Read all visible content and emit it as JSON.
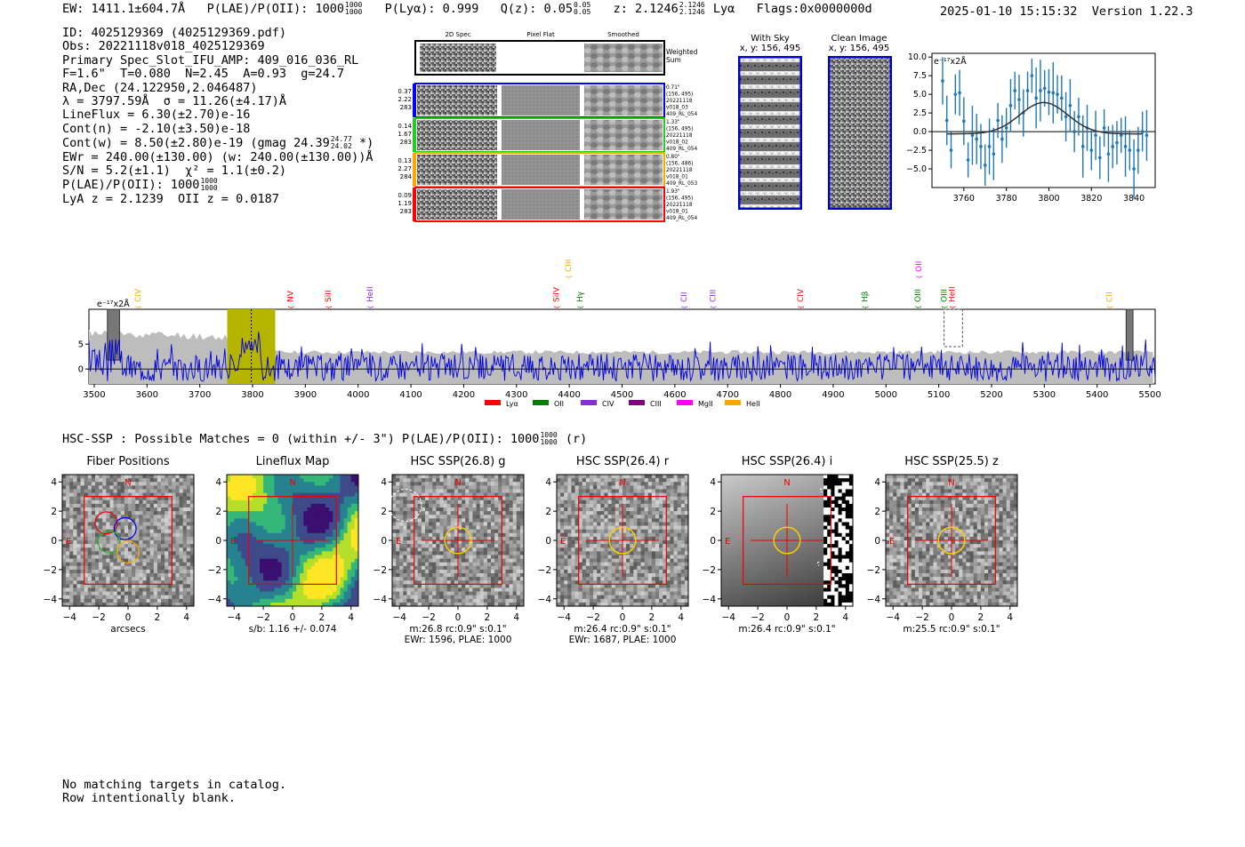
{
  "header": {
    "ew": "EW: 1411.1±604.7Å",
    "plae_label": "P(LAE)/P(OII): 1000",
    "plae_hi": "1000",
    "plae_lo": "1000",
    "plya": "P(Lyα): 0.999",
    "qz_label": "Q(z): 0.05",
    "qz_hi": "0.05",
    "qz_lo": "0.05",
    "z_label": "z: 2.1246",
    "z_hi": "2.1246",
    "z_lo": "2.1246",
    "line": "Lyα",
    "flags": "Flags:0x0000000d",
    "datetime": "2025-01-10 15:15:32",
    "version": "Version 1.22.3"
  },
  "info": {
    "id": "ID: 4025129369 (4025129369.pdf)",
    "obs": "Obs: 20221118v018_4025129369",
    "primary": "Primary Spec_Slot_IFU_AMP: 409_016_036_RL",
    "params": "F=1.6\"  T=0.080  N=2.45  A=0.93  g=24.7",
    "radec": "RA,Dec (24.122950,2.046487)",
    "lambda": "λ = 3797.59Å  σ = 11.26(±4.17)Å",
    "lineflux": "LineFlux = 6.30(±2.70)e-16",
    "contn": "Cont(n) = -2.10(±3.50)e-18",
    "contw": "Cont(w) = 8.50(±2.80)e-19 (gmag 24.39",
    "gmag_hi": "24.77",
    "gmag_lo": "24.02",
    "contw_end": " *)",
    "ewr": "EWr = 240.00(±130.00) (w: 240.00(±130.00))Å",
    "sn": "S/N = 5.2(±1.1)  χ² = 1.1(±0.2)",
    "plae": "P(LAE)/P(OII): 1000",
    "plae_hi": "1000",
    "plae_lo": "1000",
    "lya_z": "LyA z = 2.1239  OII z = 0.0187"
  },
  "cutouts": {
    "col_labels": [
      "2D Spec",
      "Pixel Flat",
      "Smoothed"
    ],
    "weighted_sum": [
      "Weighted",
      "Sum"
    ],
    "rows": [
      {
        "color": "#0000ff",
        "left": [
          "0.37",
          "2.22",
          "283"
        ],
        "right": [
          "0.71\"",
          "(156, 495)",
          "20221118",
          "v018_03",
          "409_RL_054"
        ]
      },
      {
        "color": "#22cc22",
        "left": [
          "0.14",
          "1.67",
          "283"
        ],
        "right": [
          "1.33\"",
          "(156, 495)",
          "20221118",
          "v018_02",
          "409_RL_054"
        ]
      },
      {
        "color": "#ffa500",
        "left": [
          "0.13",
          "2.27",
          "284"
        ],
        "right": [
          "0.80\"",
          "(156, 486)",
          "20221118",
          "v018_01",
          "409_RL_053"
        ]
      },
      {
        "color": "#ff0000",
        "left": [
          "0.09",
          "1.19",
          "283"
        ],
        "right": [
          "1.93\"",
          "(156, 495)",
          "20221118",
          "v018_01",
          "409_RL_054"
        ]
      }
    ]
  },
  "sky_panels": {
    "with_sky": {
      "title": "With Sky",
      "sub": "x, y: 156, 495"
    },
    "clean": {
      "title": "Clean Image",
      "sub": "x, y: 156, 495"
    }
  },
  "zoom_chart": {
    "ylabel_tag": "e⁻¹⁷x2Å",
    "x_ticks": [
      "3760",
      "3780",
      "3800",
      "3820",
      "3840"
    ],
    "y_ticks": [
      "10.0",
      "7.5",
      "5.0",
      "2.5",
      "0.0",
      "−2.5",
      "−5.0"
    ]
  },
  "chart_data": [
    {
      "type": "scatter",
      "title": "",
      "xlabel": "",
      "ylabel": "e-17 x2Å",
      "xlim": [
        3745,
        3850
      ],
      "ylim": [
        -7.5,
        10.5
      ],
      "x": [
        3750,
        3752,
        3754,
        3756,
        3758,
        3760,
        3762,
        3764,
        3766,
        3768,
        3770,
        3772,
        3774,
        3776,
        3778,
        3780,
        3782,
        3784,
        3786,
        3788,
        3790,
        3792,
        3794,
        3796,
        3798,
        3800,
        3802,
        3804,
        3806,
        3808,
        3810,
        3812,
        3814,
        3816,
        3818,
        3820,
        3822,
        3824,
        3826,
        3828,
        3830,
        3832,
        3834,
        3836,
        3838,
        3840,
        3842,
        3844,
        3846
      ],
      "y": [
        6.8,
        1.5,
        -2.5,
        5.0,
        5.2,
        1.4,
        -3.8,
        -0.5,
        -1.0,
        -2.0,
        -4.5,
        -2.0,
        -3.0,
        1.5,
        -1.0,
        0.5,
        3.5,
        5.5,
        4.3,
        2.5,
        5.5,
        7.5,
        4.5,
        5.5,
        5.8,
        5.3,
        5.2,
        5.0,
        4.5,
        2.0,
        3.5,
        0.0,
        2.0,
        -2.0,
        0.5,
        -2.5,
        -0.5,
        -3.5,
        0.5,
        -3.0,
        -2.0,
        -1.5,
        -0.5,
        -2.0,
        -2.5,
        -5.0,
        -2.5,
        0.0,
        -0.5
      ],
      "fit": {
        "amp": 4.2,
        "center": 3797.6,
        "sigma": 11.26,
        "offset": -0.3
      }
    },
    {
      "type": "line",
      "title": "",
      "xlabel": "",
      "ylabel": "e-17 x2Å",
      "xlim": [
        3490,
        5510
      ],
      "ylim": [
        -3,
        12
      ],
      "x_ticks": [
        "3500",
        "3600",
        "3700",
        "3800",
        "3900",
        "4000",
        "4100",
        "4200",
        "4300",
        "4400",
        "4500",
        "4600",
        "4700",
        "4800",
        "4900",
        "5000",
        "5100",
        "5200",
        "5300",
        "5400",
        "5500"
      ],
      "y_ticks": [
        "5",
        "0"
      ],
      "ylabel_tag": "e⁻¹⁷x2Å",
      "highlight_band": [
        3752,
        3843
      ],
      "emission_marker": 3797.6,
      "lines": [
        {
          "name": "CIV",
          "wave": 3583,
          "color": "#ffa500"
        },
        {
          "name": "NV",
          "wave": 3872,
          "color": "#ff0000"
        },
        {
          "name": "SiII",
          "wave": 3943,
          "color": "#ff0000"
        },
        {
          "name": "HeII",
          "wave": 4022,
          "color": "#8a2be2"
        },
        {
          "name": "SiIV",
          "wave": 4375,
          "color": "#ff0000"
        },
        {
          "name": "CIII",
          "wave": 4398,
          "color": "#ffa500"
        },
        {
          "name": "Hγ",
          "wave": 4420,
          "color": "#008000"
        },
        {
          "name": "CII",
          "wave": 4617,
          "color": "#8a2be2"
        },
        {
          "name": "CIII",
          "wave": 4672,
          "color": "#8a2be2"
        },
        {
          "name": "CIV",
          "wave": 4838,
          "color": "#ff0000"
        },
        {
          "name": "Hβ",
          "wave": 4960,
          "color": "#008000"
        },
        {
          "name": "OIII",
          "wave": 5060,
          "color": "#008000"
        },
        {
          "name": "OII",
          "wave": 5062,
          "color": "#ff00ff"
        },
        {
          "name": "OIII",
          "wave": 5110,
          "color": "#008000"
        },
        {
          "name": "HeII",
          "wave": 5125,
          "color": "#ff0000"
        },
        {
          "name": "CII",
          "wave": 5423,
          "color": "#ffa500"
        }
      ],
      "legend": [
        {
          "name": "Lyα",
          "color": "#ff0000"
        },
        {
          "name": "OII",
          "color": "#008000"
        },
        {
          "name": "CIV",
          "color": "#8a2be2"
        },
        {
          "name": "CIII",
          "color": "#800080"
        },
        {
          "name": "MgII",
          "color": "#ff00ff"
        },
        {
          "name": "HeII",
          "color": "#ffa500"
        }
      ]
    }
  ],
  "hsc_line": {
    "text": "HSC-SSP : Possible Matches = 0 (within +/- 3\")  P(LAE)/P(OII): 1000",
    "hi": "1000",
    "lo": "1000",
    "end": " (r)"
  },
  "panels": [
    {
      "title": "Fiber Positions",
      "caption1": "arcsecs",
      "caption2": ""
    },
    {
      "title": "Lineflux Map",
      "caption1": "s/b: 1.16 +/- 0.074",
      "caption2": ""
    },
    {
      "title": "HSC SSP(26.8) g",
      "caption1": "m:26.8 rc:0.9\"  s:0.1\"",
      "caption2": "EWr: 1596, PLAE: 1000"
    },
    {
      "title": "HSC SSP(26.4) r",
      "caption1": "m:26.4 rc:0.9\"  s:0.1\"",
      "caption2": "EWr: 1687, PLAE: 1000"
    },
    {
      "title": "HSC SSP(26.4) i",
      "caption1": "m:26.4 rc:0.9\"  s:0.1\"",
      "caption2": ""
    },
    {
      "title": "HSC SSP(25.5) z",
      "caption1": "m:25.5 rc:0.9\"  s:0.1\"",
      "caption2": ""
    }
  ],
  "panel_axes": {
    "ticks": [
      "4",
      "2",
      "0",
      "−2",
      "−4"
    ],
    "xticks": [
      "−4",
      "−2",
      "0",
      "2",
      "4"
    ],
    "north": "N",
    "east": "E"
  },
  "footer": {
    "line1": "No matching targets in catalog.",
    "line2": "Row intentionally blank."
  }
}
